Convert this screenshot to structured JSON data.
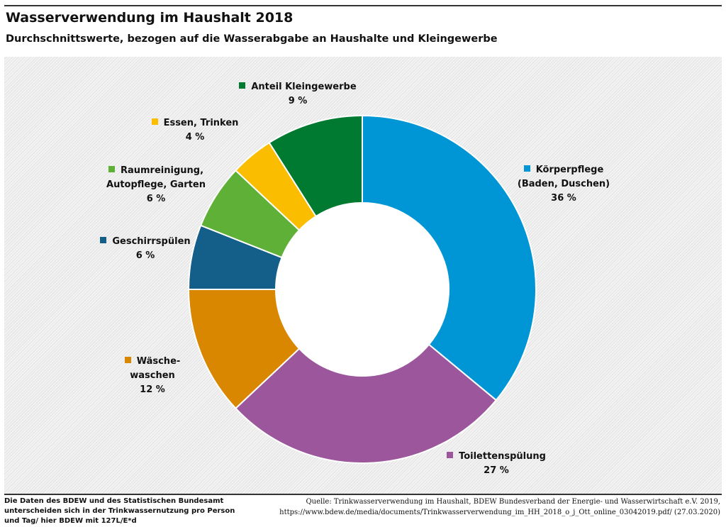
{
  "title": "Wasserverwendung im Haushalt 2018",
  "subtitle": "Durchschnittswerte, bezogen auf die Wasserabgabe an Haushalte und Kleingewerbe",
  "chart_data": {
    "type": "pie",
    "variant": "donut",
    "title": "Wasserverwendung im Haushalt 2018",
    "slices": [
      {
        "name": "Körperpflege (Baden, Duschen)",
        "line1": "Körperpflege",
        "line2": "(Baden, Duschen)",
        "value": 36,
        "label": "36 %",
        "color": "#0096d6"
      },
      {
        "name": "Toilettenspülung",
        "line1": "Toilettenspülung",
        "line2": "",
        "value": 27,
        "label": "27 %",
        "color": "#9c579c"
      },
      {
        "name": "Wäschewaschen",
        "line1": "Wäsche-",
        "line2": "waschen",
        "value": 12,
        "label": "12 %",
        "color": "#d98600"
      },
      {
        "name": "Geschirrspülen",
        "line1": "Geschirrspülen",
        "line2": "",
        "value": 6,
        "label": "6 %",
        "color": "#145f8a"
      },
      {
        "name": "Raumreinigung, Autopflege, Garten",
        "line1": "Raumreinigung,",
        "line2": "Autopflege, Garten",
        "value": 6,
        "label": "6 %",
        "color": "#5fb036"
      },
      {
        "name": "Essen, Trinken",
        "line1": "Essen, Trinken",
        "line2": "",
        "value": 4,
        "label": "4 %",
        "color": "#fbbd00"
      },
      {
        "name": "Anteil Kleingewerbe",
        "line1": "Anteil Kleingewerbe",
        "line2": "",
        "value": 9,
        "label": "9 %",
        "color": "#007a30"
      }
    ]
  },
  "footer": {
    "note": [
      "Die Daten des BDEW und des Statistischen Bundesamt",
      "unterscheiden sich in der Trinkwassernutzung pro Person",
      "und Tag/ hier BDEW mit 127L/E*d"
    ],
    "source": [
      "Quelle: Trinkwasserverwendung im Haushalt, BDEW Bundesverband der Energie- und Wasserwirtschaft e.V. 2019,",
      "https://www.bdew.de/media/documents/Trinkwasserverwendung_im_HH_2018_o_j_Ott_online_03042019.pdf/ (27.03.2020)"
    ]
  }
}
